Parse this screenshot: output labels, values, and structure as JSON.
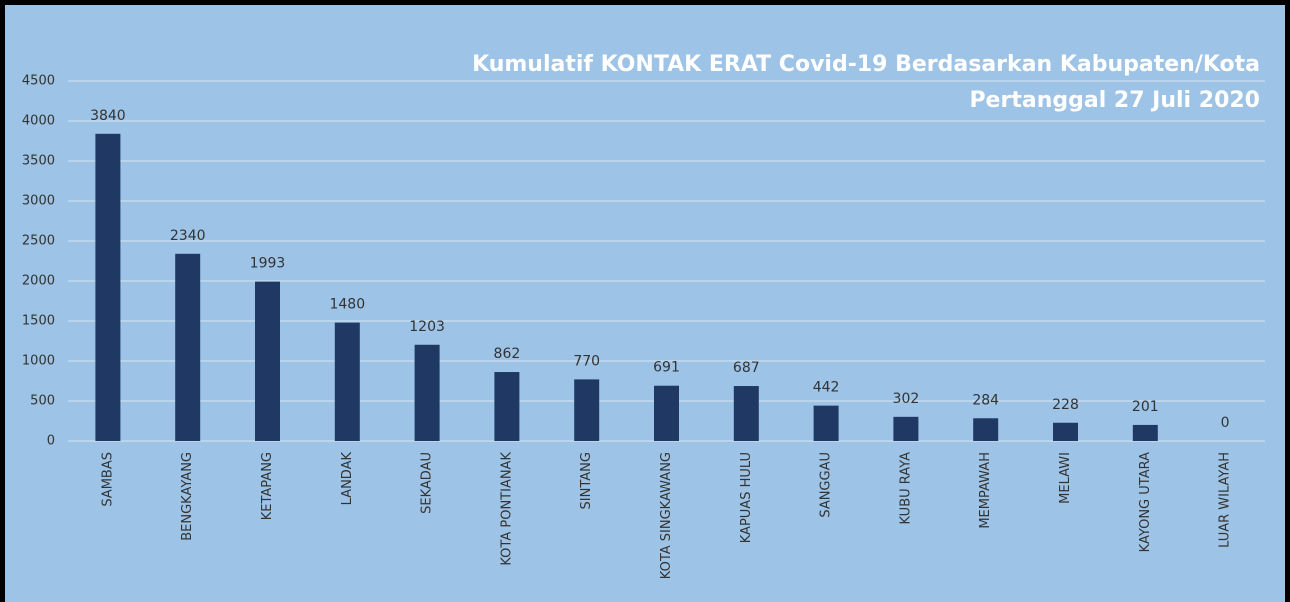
{
  "chart_data": {
    "type": "bar",
    "title": "Kumulatif KONTAK ERAT Covid-19 Berdasarkan Kabupaten/Kota",
    "subtitle": "Pertanggal 27 Juli 2020",
    "categories": [
      "SAMBAS",
      "BENGKAYANG",
      "KETAPANG",
      "LANDAK",
      "SEKADAU",
      "KOTA PONTIANAK",
      "SINTANG",
      "KOTA SINGKAWANG",
      "KAPUAS HULU",
      "SANGGAU",
      "KUBU RAYA",
      "MEMPAWAH",
      "MELAWI",
      "KAYONG UTARA",
      "LUAR WILAYAH"
    ],
    "values": [
      3840,
      2340,
      1993,
      1480,
      1203,
      862,
      770,
      691,
      687,
      442,
      302,
      284,
      228,
      201,
      0
    ],
    "color": "#1f3864",
    "ylim": [
      0,
      4500
    ],
    "yticks": [
      0,
      500,
      1000,
      1500,
      2000,
      2500,
      3000,
      3500,
      4000,
      4500
    ],
    "grid": true
  }
}
